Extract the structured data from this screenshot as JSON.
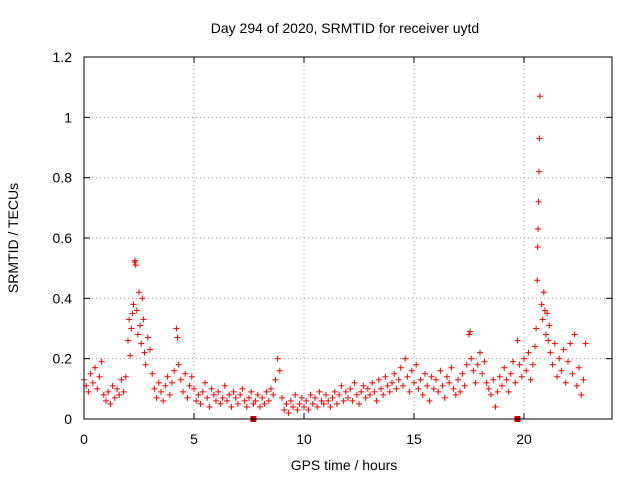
{
  "chart_data": {
    "type": "scatter",
    "title": "Day 294 of 2020, SRMTID for receiver uytd",
    "xlabel": "GPS time / hours",
    "ylabel": "SRMTID / TECUs",
    "xlim": [
      0,
      24
    ],
    "ylim": [
      0,
      1.2
    ],
    "xticks": [
      0,
      5,
      10,
      15,
      20
    ],
    "xtick_labels": [
      "0",
      "5",
      "10",
      "15",
      "20"
    ],
    "yticks": [
      0,
      0.2,
      0.4,
      0.6,
      0.8,
      1.0,
      1.2
    ],
    "ytick_labels": [
      "0",
      "0.2",
      "0.4",
      "0.6",
      "0.8",
      "1",
      "1.2"
    ],
    "grid": true,
    "marker": "+",
    "series_color": "#ff0000",
    "outlier_color": "#cc0000",
    "series": [
      {
        "name": "SRMTID",
        "points": [
          [
            0.0,
            0.13
          ],
          [
            0.1,
            0.11
          ],
          [
            0.2,
            0.09
          ],
          [
            0.3,
            0.15
          ],
          [
            0.4,
            0.12
          ],
          [
            0.5,
            0.17
          ],
          [
            0.6,
            0.1
          ],
          [
            0.7,
            0.14
          ],
          [
            0.8,
            0.19
          ],
          [
            0.9,
            0.08
          ],
          [
            1.0,
            0.06
          ],
          [
            1.1,
            0.09
          ],
          [
            1.2,
            0.05
          ],
          [
            1.3,
            0.11
          ],
          [
            1.4,
            0.07
          ],
          [
            1.5,
            0.1
          ],
          [
            1.6,
            0.08
          ],
          [
            1.7,
            0.13
          ],
          [
            1.8,
            0.09
          ],
          [
            1.9,
            0.14
          ],
          [
            2.0,
            0.26
          ],
          [
            2.05,
            0.33
          ],
          [
            2.1,
            0.21
          ],
          [
            2.15,
            0.3
          ],
          [
            2.2,
            0.35
          ],
          [
            2.25,
            0.38
          ],
          [
            2.3,
            0.52
          ],
          [
            2.32,
            0.525
          ],
          [
            2.35,
            0.51
          ],
          [
            2.4,
            0.36
          ],
          [
            2.45,
            0.28
          ],
          [
            2.5,
            0.42
          ],
          [
            2.55,
            0.31
          ],
          [
            2.6,
            0.25
          ],
          [
            2.65,
            0.4
          ],
          [
            2.7,
            0.33
          ],
          [
            2.75,
            0.22
          ],
          [
            2.8,
            0.18
          ],
          [
            2.9,
            0.27
          ],
          [
            3.0,
            0.23
          ],
          [
            3.1,
            0.15
          ],
          [
            3.2,
            0.1
          ],
          [
            3.3,
            0.07
          ],
          [
            3.4,
            0.12
          ],
          [
            3.5,
            0.09
          ],
          [
            3.6,
            0.06
          ],
          [
            3.7,
            0.11
          ],
          [
            3.8,
            0.14
          ],
          [
            3.9,
            0.08
          ],
          [
            4.0,
            0.12
          ],
          [
            4.1,
            0.16
          ],
          [
            4.2,
            0.3
          ],
          [
            4.25,
            0.27
          ],
          [
            4.3,
            0.18
          ],
          [
            4.4,
            0.13
          ],
          [
            4.5,
            0.09
          ],
          [
            4.6,
            0.15
          ],
          [
            4.7,
            0.07
          ],
          [
            4.8,
            0.11
          ],
          [
            4.9,
            0.14
          ],
          [
            5.0,
            0.1
          ],
          [
            5.1,
            0.06
          ],
          [
            5.2,
            0.08
          ],
          [
            5.3,
            0.05
          ],
          [
            5.4,
            0.09
          ],
          [
            5.5,
            0.12
          ],
          [
            5.6,
            0.07
          ],
          [
            5.7,
            0.04
          ],
          [
            5.8,
            0.1
          ],
          [
            5.9,
            0.08
          ],
          [
            6.0,
            0.06
          ],
          [
            6.1,
            0.09
          ],
          [
            6.2,
            0.05
          ],
          [
            6.3,
            0.07
          ],
          [
            6.4,
            0.11
          ],
          [
            6.5,
            0.06
          ],
          [
            6.6,
            0.08
          ],
          [
            6.7,
            0.04
          ],
          [
            6.8,
            0.09
          ],
          [
            6.9,
            0.07
          ],
          [
            7.0,
            0.05
          ],
          [
            7.1,
            0.08
          ],
          [
            7.2,
            0.1
          ],
          [
            7.3,
            0.06
          ],
          [
            7.4,
            0.04
          ],
          [
            7.5,
            0.07
          ],
          [
            7.6,
            0.09
          ],
          [
            7.7,
            0.05
          ],
          [
            7.8,
            0.06
          ],
          [
            7.9,
            0.08
          ],
          [
            8.0,
            0.04
          ],
          [
            8.1,
            0.07
          ],
          [
            8.2,
            0.05
          ],
          [
            8.3,
            0.09
          ],
          [
            8.4,
            0.06
          ],
          [
            8.5,
            0.1
          ],
          [
            8.6,
            0.08
          ],
          [
            8.7,
            0.13
          ],
          [
            8.8,
            0.2
          ],
          [
            8.9,
            0.16
          ],
          [
            9.0,
            0.07
          ],
          [
            9.1,
            0.03
          ],
          [
            9.2,
            0.05
          ],
          [
            9.3,
            0.02
          ],
          [
            9.4,
            0.06
          ],
          [
            9.5,
            0.04
          ],
          [
            9.6,
            0.08
          ],
          [
            9.7,
            0.03
          ],
          [
            9.8,
            0.05
          ],
          [
            9.9,
            0.07
          ],
          [
            10.0,
            0.04
          ],
          [
            10.1,
            0.06
          ],
          [
            10.2,
            0.03
          ],
          [
            10.3,
            0.08
          ],
          [
            10.4,
            0.05
          ],
          [
            10.5,
            0.07
          ],
          [
            10.6,
            0.04
          ],
          [
            10.7,
            0.09
          ],
          [
            10.8,
            0.06
          ],
          [
            10.9,
            0.05
          ],
          [
            11.0,
            0.08
          ],
          [
            11.1,
            0.06
          ],
          [
            11.2,
            0.04
          ],
          [
            11.3,
            0.07
          ],
          [
            11.4,
            0.09
          ],
          [
            11.5,
            0.05
          ],
          [
            11.6,
            0.08
          ],
          [
            11.7,
            0.11
          ],
          [
            11.8,
            0.06
          ],
          [
            11.9,
            0.09
          ],
          [
            12.0,
            0.07
          ],
          [
            12.1,
            0.1
          ],
          [
            12.2,
            0.06
          ],
          [
            12.3,
            0.12
          ],
          [
            12.4,
            0.08
          ],
          [
            12.5,
            0.05
          ],
          [
            12.6,
            0.09
          ],
          [
            12.7,
            0.11
          ],
          [
            12.8,
            0.07
          ],
          [
            12.9,
            0.1
          ],
          [
            13.0,
            0.08
          ],
          [
            13.1,
            0.12
          ],
          [
            13.2,
            0.09
          ],
          [
            13.3,
            0.06
          ],
          [
            13.4,
            0.13
          ],
          [
            13.5,
            0.1
          ],
          [
            13.6,
            0.08
          ],
          [
            13.7,
            0.14
          ],
          [
            13.8,
            0.11
          ],
          [
            13.9,
            0.09
          ],
          [
            14.0,
            0.12
          ],
          [
            14.1,
            0.15
          ],
          [
            14.2,
            0.1
          ],
          [
            14.3,
            0.13
          ],
          [
            14.4,
            0.17
          ],
          [
            14.5,
            0.11
          ],
          [
            14.6,
            0.2
          ],
          [
            14.7,
            0.14
          ],
          [
            14.8,
            0.09
          ],
          [
            14.9,
            0.16
          ],
          [
            15.0,
            0.12
          ],
          [
            15.1,
            0.18
          ],
          [
            15.2,
            0.1
          ],
          [
            15.3,
            0.13
          ],
          [
            15.4,
            0.08
          ],
          [
            15.5,
            0.15
          ],
          [
            15.6,
            0.11
          ],
          [
            15.7,
            0.06
          ],
          [
            15.8,
            0.14
          ],
          [
            15.9,
            0.1
          ],
          [
            16.0,
            0.13
          ],
          [
            16.1,
            0.09
          ],
          [
            16.2,
            0.16
          ],
          [
            16.3,
            0.11
          ],
          [
            16.4,
            0.07
          ],
          [
            16.5,
            0.14
          ],
          [
            16.6,
            0.12
          ],
          [
            16.7,
            0.17
          ],
          [
            16.8,
            0.1
          ],
          [
            16.9,
            0.08
          ],
          [
            17.0,
            0.13
          ],
          [
            17.1,
            0.09
          ],
          [
            17.2,
            0.15
          ],
          [
            17.3,
            0.11
          ],
          [
            17.4,
            0.18
          ],
          [
            17.5,
            0.28
          ],
          [
            17.55,
            0.29
          ],
          [
            17.6,
            0.2
          ],
          [
            17.7,
            0.16
          ],
          [
            17.8,
            0.12
          ],
          [
            17.9,
            0.18
          ],
          [
            18.0,
            0.22
          ],
          [
            18.1,
            0.15
          ],
          [
            18.2,
            0.19
          ],
          [
            18.3,
            0.12
          ],
          [
            18.4,
            0.1
          ],
          [
            18.5,
            0.08
          ],
          [
            18.6,
            0.13
          ],
          [
            18.7,
            0.04
          ],
          [
            18.8,
            0.09
          ],
          [
            18.9,
            0.14
          ],
          [
            19.0,
            0.11
          ],
          [
            19.1,
            0.17
          ],
          [
            19.2,
            0.13
          ],
          [
            19.3,
            0.09
          ],
          [
            19.4,
            0.15
          ],
          [
            19.5,
            0.19
          ],
          [
            19.6,
            0.12
          ],
          [
            19.7,
            0.26
          ],
          [
            19.8,
            0.18
          ],
          [
            19.9,
            0.14
          ],
          [
            20.0,
            0.2
          ],
          [
            20.1,
            0.16
          ],
          [
            20.2,
            0.22
          ],
          [
            20.3,
            0.13
          ],
          [
            20.4,
            0.18
          ],
          [
            20.5,
            0.24
          ],
          [
            20.55,
            0.3
          ],
          [
            20.6,
            0.46
          ],
          [
            20.62,
            0.57
          ],
          [
            20.64,
            0.63
          ],
          [
            20.66,
            0.72
          ],
          [
            20.68,
            0.82
          ],
          [
            20.7,
            0.93
          ],
          [
            20.72,
            1.07
          ],
          [
            20.8,
            0.38
          ],
          [
            20.85,
            0.33
          ],
          [
            20.9,
            0.42
          ],
          [
            20.95,
            0.36
          ],
          [
            21.0,
            0.28
          ],
          [
            21.05,
            0.35
          ],
          [
            21.1,
            0.26
          ],
          [
            21.15,
            0.31
          ],
          [
            21.2,
            0.22
          ],
          [
            21.3,
            0.18
          ],
          [
            21.4,
            0.25
          ],
          [
            21.5,
            0.14
          ],
          [
            21.6,
            0.2
          ],
          [
            21.7,
            0.16
          ],
          [
            21.8,
            0.23
          ],
          [
            21.9,
            0.12
          ],
          [
            22.0,
            0.19
          ],
          [
            22.1,
            0.25
          ],
          [
            22.2,
            0.15
          ],
          [
            22.3,
            0.28
          ],
          [
            22.4,
            0.11
          ],
          [
            22.5,
            0.17
          ],
          [
            22.6,
            0.08
          ],
          [
            22.7,
            0.13
          ],
          [
            22.8,
            0.25
          ]
        ]
      }
    ],
    "outliers": [
      [
        7.7,
        0.0
      ],
      [
        19.7,
        0.0
      ]
    ]
  }
}
